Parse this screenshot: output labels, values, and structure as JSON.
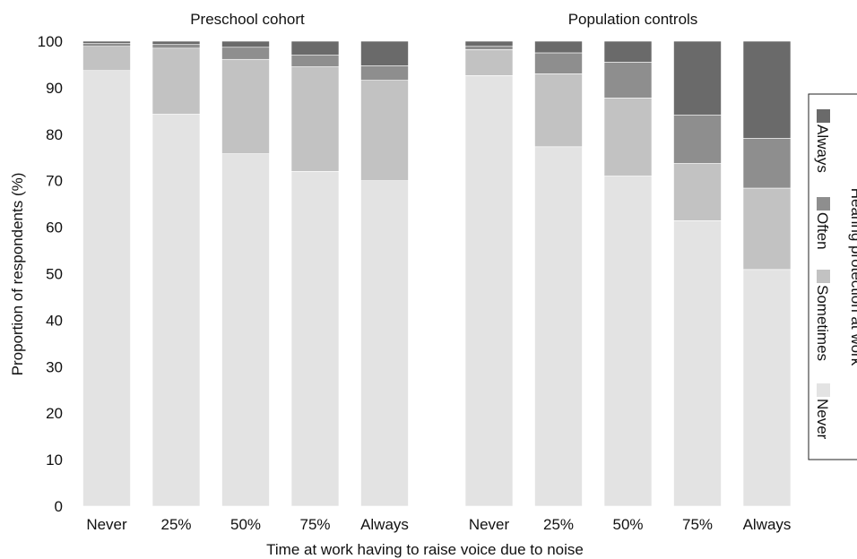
{
  "chart_data": {
    "type": "bar",
    "stacked": true,
    "xlabel": "Time at work having to raise voice due to noise",
    "ylabel": "Proportion of respondents (%)",
    "ylim": [
      0,
      100
    ],
    "yticks": [
      0,
      10,
      20,
      30,
      40,
      50,
      60,
      70,
      80,
      90,
      100
    ],
    "grid": false,
    "categories": [
      "Never",
      "25%",
      "50%",
      "75%",
      "Always"
    ],
    "legend": {
      "title": "Hearing protection at work",
      "placement": "right",
      "orientation": "vertical",
      "entries": [
        "Always",
        "Often",
        "Sometimes",
        "Never"
      ]
    },
    "series_colors": {
      "Never": "#e3e3e3",
      "Sometimes": "#c2c2c2",
      "Often": "#8e8e8e",
      "Always": "#6a6a6a"
    },
    "panels": [
      {
        "title": "Preschool cohort",
        "series": [
          {
            "name": "Never",
            "values": [
              93.7,
              84.3,
              75.8,
              72.0,
              70.0
            ]
          },
          {
            "name": "Sometimes",
            "values": [
              5.2,
              14.2,
              20.3,
              22.5,
              21.6
            ]
          },
          {
            "name": "Often",
            "values": [
              0.6,
              0.8,
              2.6,
              2.5,
              3.1
            ]
          },
          {
            "name": "Always",
            "values": [
              0.5,
              0.7,
              1.3,
              3.0,
              5.3
            ]
          }
        ]
      },
      {
        "title": "Population controls",
        "series": [
          {
            "name": "Never",
            "values": [
              92.6,
              77.3,
              71.0,
              61.4,
              50.9
            ]
          },
          {
            "name": "Sometimes",
            "values": [
              5.6,
              15.7,
              16.8,
              12.3,
              17.5
            ]
          },
          {
            "name": "Often",
            "values": [
              0.7,
              4.5,
              7.7,
              10.4,
              10.7
            ]
          },
          {
            "name": "Always",
            "values": [
              1.1,
              2.5,
              4.5,
              15.9,
              20.9
            ]
          }
        ]
      }
    ]
  }
}
